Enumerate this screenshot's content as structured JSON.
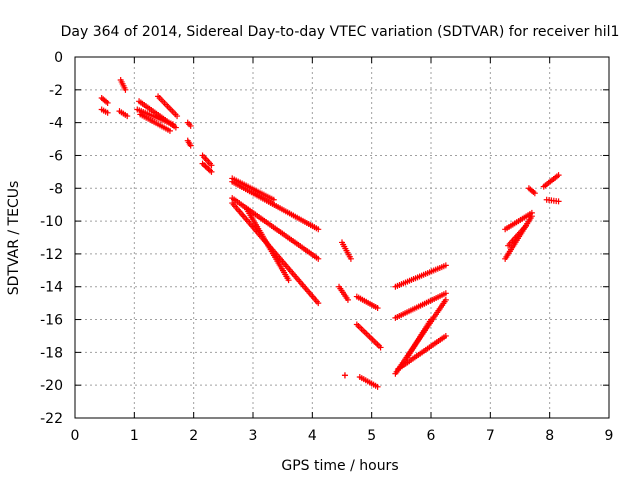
{
  "chart_data": {
    "type": "scatter",
    "title": "Day 364 of 2014, Sidereal Day-to-day VTEC variation (SDTVAR) for receiver hil1",
    "xlabel": "GPS time / hours",
    "ylabel": "SDTVAR / TECUs",
    "xlim": [
      0,
      9
    ],
    "ylim": [
      -22,
      0
    ],
    "xticks": [
      0,
      1,
      2,
      3,
      4,
      5,
      6,
      7,
      8,
      9
    ],
    "yticks": [
      0,
      -2,
      -4,
      -6,
      -8,
      -10,
      -12,
      -14,
      -16,
      -18,
      -20,
      -22
    ],
    "grid": true,
    "marker": "+",
    "series_color": "#ff0000",
    "segments": [
      {
        "x": [
          0.45,
          0.55
        ],
        "y": [
          -2.5,
          -2.8
        ]
      },
      {
        "x": [
          0.45,
          0.55
        ],
        "y": [
          -3.2,
          -3.4
        ]
      },
      {
        "x": [
          0.77,
          0.85
        ],
        "y": [
          -1.4,
          -2.0
        ]
      },
      {
        "x": [
          0.75,
          0.88
        ],
        "y": [
          -3.3,
          -3.6
        ]
      },
      {
        "x": [
          1.08,
          1.7
        ],
        "y": [
          -2.7,
          -4.3
        ]
      },
      {
        "x": [
          1.05,
          1.65
        ],
        "y": [
          -3.2,
          -4.1
        ]
      },
      {
        "x": [
          1.1,
          1.6
        ],
        "y": [
          -3.5,
          -4.5
        ]
      },
      {
        "x": [
          1.4,
          1.72
        ],
        "y": [
          -2.4,
          -3.6
        ]
      },
      {
        "x": [
          1.9,
          1.95
        ],
        "y": [
          -4.0,
          -4.2
        ]
      },
      {
        "x": [
          1.9,
          1.95
        ],
        "y": [
          -5.1,
          -5.4
        ]
      },
      {
        "x": [
          2.15,
          2.3
        ],
        "y": [
          -6.0,
          -6.6
        ]
      },
      {
        "x": [
          2.15,
          2.3
        ],
        "y": [
          -6.5,
          -7.0
        ]
      },
      {
        "x": [
          2.65,
          3.35
        ],
        "y": [
          -7.4,
          -8.7
        ]
      },
      {
        "x": [
          2.65,
          4.1
        ],
        "y": [
          -7.6,
          -10.5
        ]
      },
      {
        "x": [
          2.65,
          4.1
        ],
        "y": [
          -8.6,
          -12.3
        ]
      },
      {
        "x": [
          2.65,
          4.1
        ],
        "y": [
          -8.9,
          -15.0
        ]
      },
      {
        "x": [
          2.9,
          3.6
        ],
        "y": [
          -9.3,
          -13.6
        ]
      },
      {
        "x": [
          4.5,
          4.65
        ],
        "y": [
          -11.3,
          -12.3
        ]
      },
      {
        "x": [
          4.45,
          4.6
        ],
        "y": [
          -14.0,
          -14.8
        ]
      },
      {
        "x": [
          4.55
        ],
        "y": [
          -19.4
        ]
      },
      {
        "x": [
          4.75,
          5.1
        ],
        "y": [
          -14.6,
          -15.3
        ]
      },
      {
        "x": [
          4.75,
          5.15
        ],
        "y": [
          -16.3,
          -17.7
        ]
      },
      {
        "x": [
          4.8,
          5.1
        ],
        "y": [
          -19.5,
          -20.1
        ]
      },
      {
        "x": [
          5.4,
          6.25
        ],
        "y": [
          -14.0,
          -12.7
        ]
      },
      {
        "x": [
          5.4,
          6.25
        ],
        "y": [
          -15.9,
          -14.4
        ]
      },
      {
        "x": [
          5.4,
          6.25
        ],
        "y": [
          -19.3,
          -14.8
        ]
      },
      {
        "x": [
          5.45,
          6.25
        ],
        "y": [
          -19.0,
          -17.0
        ]
      },
      {
        "x": [
          5.6,
          6.0
        ],
        "y": [
          -18.3,
          -16.0
        ]
      },
      {
        "x": [
          7.25,
          7.7
        ],
        "y": [
          -10.5,
          -9.5
        ]
      },
      {
        "x": [
          7.25,
          7.7
        ],
        "y": [
          -12.3,
          -9.7
        ]
      },
      {
        "x": [
          7.3,
          7.6
        ],
        "y": [
          -11.5,
          -10.3
        ]
      },
      {
        "x": [
          7.65,
          7.75
        ],
        "y": [
          -8.0,
          -8.3
        ]
      },
      {
        "x": [
          7.9,
          8.15
        ],
        "y": [
          -7.9,
          -7.2
        ]
      },
      {
        "x": [
          7.95,
          8.15
        ],
        "y": [
          -8.7,
          -8.8
        ]
      }
    ]
  }
}
